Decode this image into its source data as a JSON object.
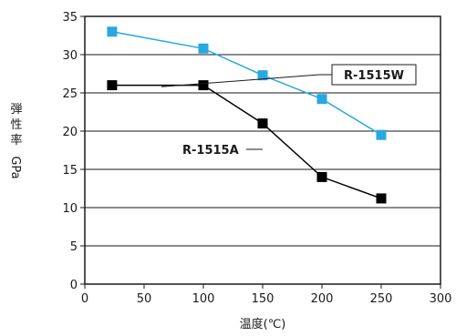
{
  "chart_data": {
    "type": "line",
    "xlabel": "温度(℃)",
    "ylabel_chars": [
      "弾",
      "性",
      "率"
    ],
    "ylabel_unit": "GPa",
    "xlim": [
      0,
      300
    ],
    "ylim": [
      0,
      35
    ],
    "x_ticks": [
      0,
      50,
      100,
      150,
      200,
      250,
      300
    ],
    "y_ticks": [
      0,
      5,
      10,
      15,
      20,
      25,
      30,
      35
    ],
    "grid": "horizontal",
    "series": [
      {
        "name": "R-1515W",
        "color": "#29a8e0",
        "marker": "square",
        "x": [
          23,
          100,
          150,
          200,
          250
        ],
        "y": [
          33,
          30.8,
          27.3,
          24.2,
          19.5
        ]
      },
      {
        "name": "R-1515A",
        "color": "#000000",
        "marker": "square",
        "x": [
          23,
          100,
          150,
          200,
          250
        ],
        "y": [
          26,
          26,
          21,
          14,
          11.2
        ]
      }
    ]
  }
}
